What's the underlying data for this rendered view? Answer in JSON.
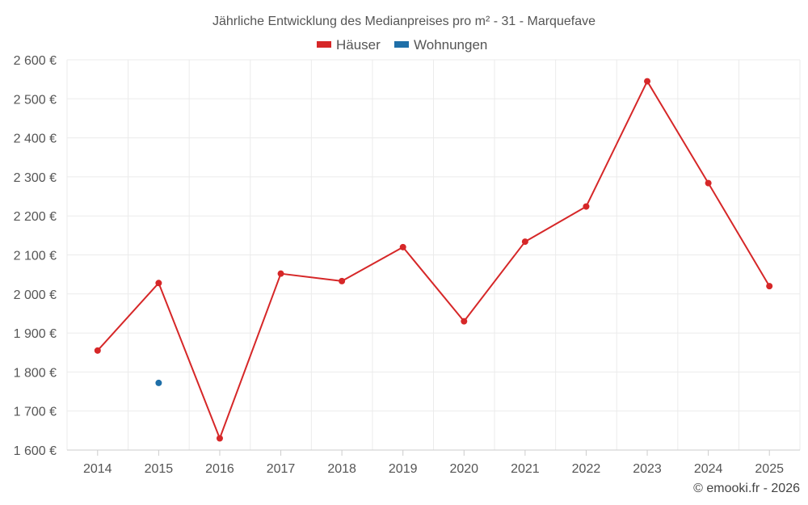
{
  "chart_data": {
    "type": "line",
    "title": "Jährliche Entwicklung des Medianpreises pro m² - 31 - Marquefave",
    "categories": [
      "2014",
      "2015",
      "2016",
      "2017",
      "2018",
      "2019",
      "2020",
      "2021",
      "2022",
      "2023",
      "2024",
      "2025"
    ],
    "series": [
      {
        "name": "Häuser",
        "color": "#d62728",
        "values": [
          1855,
          2028,
          1630,
          2052,
          2033,
          2120,
          1930,
          2134,
          2224,
          2545,
          2284,
          2020
        ]
      },
      {
        "name": "Wohnungen",
        "color": "#1f6fa8",
        "values": [
          null,
          1772,
          null,
          null,
          null,
          null,
          null,
          null,
          null,
          null,
          null,
          null
        ]
      }
    ],
    "ylim": [
      1600,
      2600
    ],
    "yticks": [
      1600,
      1700,
      1800,
      1900,
      2000,
      2100,
      2200,
      2300,
      2400,
      2500,
      2600
    ],
    "ytick_labels": [
      "1 600 €",
      "1 700 €",
      "1 800 €",
      "1 900 €",
      "2 000 €",
      "2 100 €",
      "2 200 €",
      "2 300 €",
      "2 400 €",
      "2 500 €",
      "2 600 €"
    ],
    "xlabel": "",
    "ylabel": "",
    "grid": true,
    "legend": "top-center"
  },
  "credit": "© emooki.fr - 2026"
}
